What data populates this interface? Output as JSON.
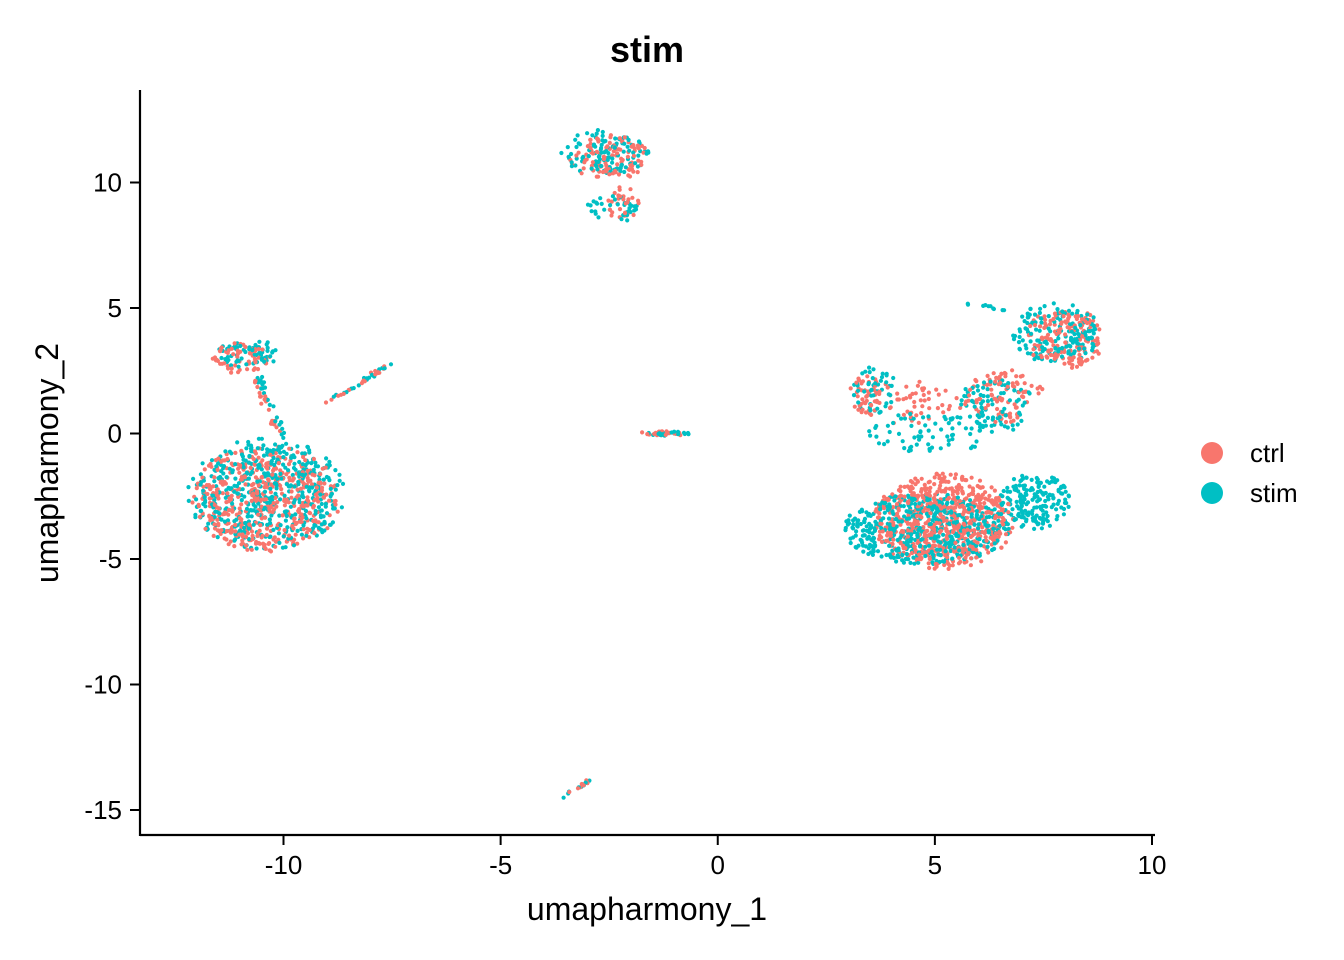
{
  "chart_data": {
    "type": "scatter",
    "title": "stim",
    "xlabel": "umapharmony_1",
    "ylabel": "umapharmony_2",
    "xlim": [
      -13.3,
      10.1
    ],
    "ylim": [
      -15.9,
      13.6
    ],
    "x_ticks": [
      -10,
      -5,
      0,
      5,
      10
    ],
    "x_tick_labels": [
      "-10",
      "-5",
      "0",
      "5",
      "10"
    ],
    "y_ticks": [
      -15,
      -10,
      -5,
      0,
      5,
      10
    ],
    "y_tick_labels": [
      "-15",
      "-10",
      "-5",
      "0",
      "5",
      "10"
    ],
    "grid": false,
    "legend_position": "right",
    "series": [
      {
        "name": "ctrl",
        "color": "#F8766D",
        "clusters": [
          {
            "cx": -10.4,
            "cy": -2.6,
            "rx": 1.7,
            "ry": 2.1,
            "n": 500
          },
          {
            "cx": -11.0,
            "cy": 3.0,
            "rx": 0.7,
            "ry": 0.6,
            "n": 60
          },
          {
            "cx": -2.5,
            "cy": 11.0,
            "rx": 0.9,
            "ry": 0.9,
            "n": 110
          },
          {
            "cx": -2.2,
            "cy": 9.2,
            "rx": 0.4,
            "ry": 0.7,
            "n": 30
          },
          {
            "cx": 5.2,
            "cy": -3.5,
            "rx": 1.6,
            "ry": 1.9,
            "n": 650
          },
          {
            "cx": 8.0,
            "cy": 3.8,
            "rx": 0.9,
            "ry": 1.2,
            "n": 160
          },
          {
            "cx": 6.6,
            "cy": 1.5,
            "rx": 0.9,
            "ry": 1.1,
            "n": 90
          },
          {
            "cx": 4.5,
            "cy": 1.2,
            "rx": 1.2,
            "ry": 0.9,
            "n": 60
          },
          {
            "cx": 3.4,
            "cy": 1.5,
            "rx": 0.4,
            "ry": 0.8,
            "n": 40
          },
          {
            "cx": -1.2,
            "cy": 0.0,
            "rx": 0.6,
            "ry": 0.1,
            "n": 20
          }
        ],
        "lines": [
          {
            "from": [
              -9.0,
              1.2
            ],
            "to": [
              -7.5,
              2.8
            ],
            "n": 20
          },
          {
            "from": [
              -10.7,
              2.2
            ],
            "to": [
              -10.1,
              -0.2
            ],
            "n": 25
          },
          {
            "from": [
              -3.6,
              -14.5
            ],
            "to": [
              -3.0,
              -13.9
            ],
            "n": 8
          }
        ]
      },
      {
        "name": "stim",
        "color": "#00BFC4",
        "clusters": [
          {
            "cx": -10.4,
            "cy": -2.4,
            "rx": 1.8,
            "ry": 2.2,
            "n": 500
          },
          {
            "cx": -10.8,
            "cy": 3.2,
            "rx": 0.7,
            "ry": 0.6,
            "n": 60
          },
          {
            "cx": -2.6,
            "cy": 11.2,
            "rx": 1.0,
            "ry": 0.9,
            "n": 110
          },
          {
            "cx": -2.4,
            "cy": 9.0,
            "rx": 0.6,
            "ry": 0.6,
            "n": 35
          },
          {
            "cx": 4.8,
            "cy": -3.8,
            "rx": 1.9,
            "ry": 1.4,
            "n": 550
          },
          {
            "cx": 7.3,
            "cy": -2.7,
            "rx": 0.8,
            "ry": 1.1,
            "n": 180
          },
          {
            "cx": 7.8,
            "cy": 4.0,
            "rx": 1.0,
            "ry": 1.2,
            "n": 160
          },
          {
            "cx": 6.4,
            "cy": 1.0,
            "rx": 0.9,
            "ry": 1.2,
            "n": 90
          },
          {
            "cx": 3.6,
            "cy": 1.8,
            "rx": 0.5,
            "ry": 1.0,
            "n": 50
          },
          {
            "cx": 4.8,
            "cy": 0.0,
            "rx": 1.5,
            "ry": 0.8,
            "n": 70
          },
          {
            "cx": -1.1,
            "cy": 0.0,
            "rx": 0.5,
            "ry": 0.1,
            "n": 20
          }
        ],
        "lines": [
          {
            "from": [
              -9.0,
              1.2
            ],
            "to": [
              -7.4,
              2.9
            ],
            "n": 20
          },
          {
            "from": [
              -10.6,
              2.4
            ],
            "to": [
              -10.0,
              -0.1
            ],
            "n": 25
          },
          {
            "from": [
              -3.6,
              -14.5
            ],
            "to": [
              -2.9,
              -13.8
            ],
            "n": 8
          },
          {
            "from": [
              5.8,
              5.2
            ],
            "to": [
              6.6,
              4.9
            ],
            "n": 10
          }
        ]
      }
    ]
  }
}
